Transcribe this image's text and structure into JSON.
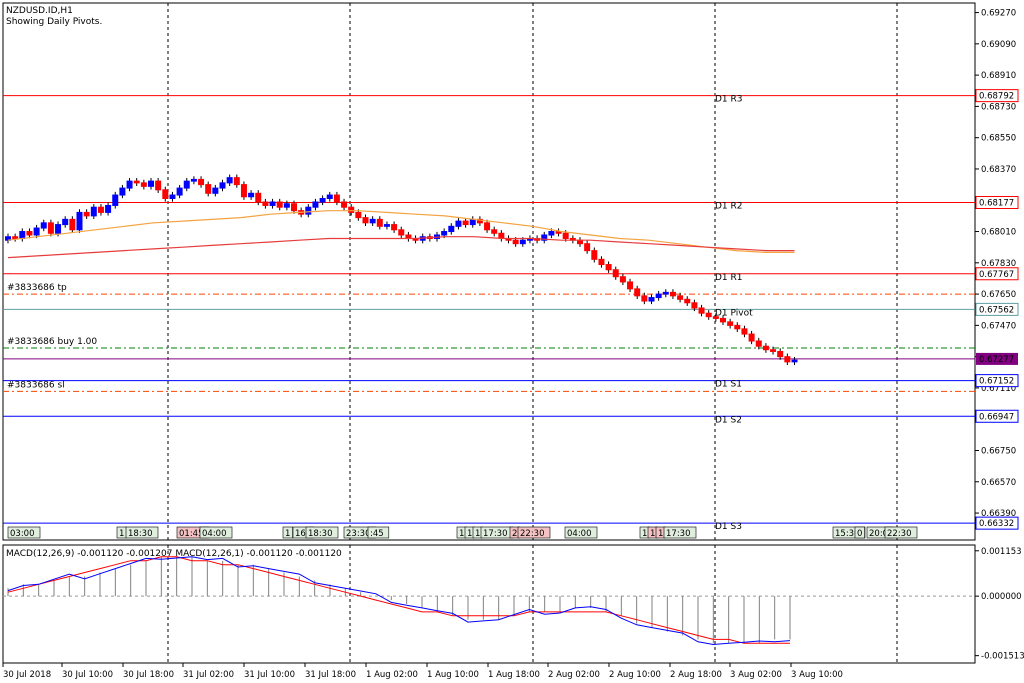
{
  "header": {
    "symbol": "NZDUSD.ID,H1",
    "subtitle": "Showing Daily Pivots."
  },
  "chart_data": {
    "type": "candlestick",
    "price_axis": {
      "range": [
        0.66235,
        0.69325
      ],
      "ticks": [
        "0.69270",
        "0.69090",
        "0.68910",
        "0.68730",
        "0.68550",
        "0.68370",
        "0.68190",
        "0.68010",
        "0.67830",
        "0.67650",
        "0.67470",
        "0.67290",
        "0.67110",
        "0.66930",
        "0.66750",
        "0.66570",
        "0.66390"
      ]
    },
    "time_axis": {
      "labels": [
        "30 Jul 2018",
        "30 Jul 10:00",
        "30 Jul 18:00",
        "31 Jul 02:00",
        "31 Jul 10:00",
        "31 Jul 18:00",
        "1 Aug 02:00",
        "1 Aug 10:00",
        "1 Aug 18:00",
        "2 Aug 02:00",
        "2 Aug 10:00",
        "2 Aug 18:00",
        "3 Aug 02:00",
        "3 Aug 10:00"
      ]
    },
    "pivot_levels": [
      {
        "name": "D1 R3",
        "value": 0.68792,
        "label": "0.68792",
        "color": "#ff0000"
      },
      {
        "name": "D1 R2",
        "value": 0.68177,
        "label": "0.68177",
        "color": "#ff0000"
      },
      {
        "name": "D1 R1",
        "value": 0.67767,
        "label": "0.67767",
        "color": "#ff0000"
      },
      {
        "name": "D1 Pivot",
        "value": 0.67562,
        "label": "0.67562",
        "color": "#5f9ea0"
      },
      {
        "name": "D1 S1",
        "value": 0.67152,
        "label": "0.67152",
        "color": "#0000ff"
      },
      {
        "name": "D1 S2",
        "value": 0.66947,
        "label": "0.66947",
        "color": "#0000ff"
      },
      {
        "name": "D1 S3",
        "value": 0.66332,
        "label": "0.66332",
        "color": "#0000ff"
      }
    ],
    "current_price": {
      "value": 0.67277,
      "label": "0.67277",
      "color": "#800080"
    },
    "orders": [
      {
        "label": "#3833686 tp",
        "value": 0.6765,
        "color": "#ff4500"
      },
      {
        "label": "#3833686 buy 1.00",
        "value": 0.6734,
        "color": "#008000"
      },
      {
        "label": "#3833686 sl",
        "value": 0.6709,
        "color": "#ff4500"
      }
    ],
    "session_labels": [
      "03:00",
      "1",
      "18:30",
      "01:45",
      "04:00",
      "1",
      "16:",
      "18:30",
      "23:30",
      ":45",
      "1",
      "1",
      "1",
      "17:30",
      "2",
      "22:30",
      "04:00",
      "1",
      "1",
      "1",
      "17:30",
      "15:30",
      "0",
      "20:0",
      "22:30"
    ],
    "closes": [
      0.6798,
      0.6797,
      0.6801,
      0.6799,
      0.6803,
      0.6806,
      0.68,
      0.6805,
      0.6808,
      0.6802,
      0.6812,
      0.681,
      0.6815,
      0.6812,
      0.6816,
      0.6822,
      0.6826,
      0.683,
      0.6829,
      0.6827,
      0.683,
      0.6825,
      0.682,
      0.6822,
      0.6826,
      0.683,
      0.6831,
      0.6828,
      0.6823,
      0.6826,
      0.6829,
      0.6832,
      0.6828,
      0.6821,
      0.6823,
      0.6818,
      0.6816,
      0.6818,
      0.6815,
      0.6817,
      0.6813,
      0.6811,
      0.6815,
      0.6818,
      0.682,
      0.6822,
      0.6818,
      0.6815,
      0.6812,
      0.6809,
      0.6806,
      0.6808,
      0.6804,
      0.6805,
      0.6802,
      0.6799,
      0.6797,
      0.6796,
      0.6798,
      0.6797,
      0.6799,
      0.6801,
      0.6804,
      0.6807,
      0.6805,
      0.6808,
      0.6806,
      0.6802,
      0.68,
      0.6797,
      0.6796,
      0.6794,
      0.6796,
      0.6797,
      0.6796,
      0.6799,
      0.6801,
      0.68,
      0.6797,
      0.6796,
      0.6794,
      0.679,
      0.6785,
      0.6782,
      0.6779,
      0.6775,
      0.6772,
      0.6768,
      0.6764,
      0.6761,
      0.6763,
      0.6765,
      0.6766,
      0.6764,
      0.6762,
      0.676,
      0.6757,
      0.6754,
      0.6752,
      0.6751,
      0.6749,
      0.6747,
      0.6745,
      0.6742,
      0.6738,
      0.6735,
      0.6733,
      0.6732,
      0.6729,
      0.6726,
      0.6727
    ],
    "ma_fast": [
      0.6796,
      0.6798,
      0.68,
      0.6802,
      0.6804,
      0.6806,
      0.6807,
      0.6808,
      0.6809,
      0.6811,
      0.6812,
      0.6813,
      0.6813,
      0.6812,
      0.6811,
      0.681,
      0.6808,
      0.6806,
      0.6804,
      0.6801,
      0.6799,
      0.6797,
      0.6796,
      0.6794,
      0.6792,
      0.679,
      0.6789,
      0.6789
    ],
    "ma_slow": [
      0.6786,
      0.6787,
      0.6788,
      0.6789,
      0.679,
      0.6791,
      0.6792,
      0.6793,
      0.6794,
      0.6795,
      0.6796,
      0.6797,
      0.6797,
      0.6797,
      0.6797,
      0.6798,
      0.6798,
      0.6797,
      0.6797,
      0.6796,
      0.6796,
      0.6795,
      0.6794,
      0.6793,
      0.6792,
      0.6791,
      0.679,
      0.679
    ],
    "macd": {
      "label": "MACD(12,26,9) -0.001120 -0.001207 MACD(12,26,1) -0.001120 -0.001120",
      "range": [
        -0.0017,
        0.0013
      ],
      "ticks": [
        "0.001153",
        "0.000000",
        "-0.001513"
      ],
      "histogram": [
        0.0002,
        0.0003,
        0.0003,
        0.0004,
        0.0005,
        0.0005,
        0.0006,
        0.0007,
        0.0008,
        0.0009,
        0.001,
        0.001,
        0.001,
        0.0009,
        0.0009,
        0.0008,
        0.0008,
        0.0007,
        0.0006,
        0.0005,
        0.0004,
        0.0003,
        0.0002,
        0.0001,
        0.0,
        -0.0001,
        -0.0002,
        -0.0003,
        -0.0004,
        -0.0005,
        -0.0006,
        -0.0006,
        -0.0006,
        -0.0005,
        -0.0004,
        -0.0004,
        -0.0004,
        -0.0003,
        -0.0003,
        -0.0004,
        -0.0005,
        -0.0007,
        -0.0008,
        -0.0009,
        -0.001,
        -0.0011,
        -0.0012,
        -0.0012,
        -0.0012,
        -0.0012,
        -0.0011,
        -0.0011
      ],
      "signal": [
        0.0001,
        0.0002,
        0.0003,
        0.0004,
        0.0005,
        0.0006,
        0.0007,
        0.0008,
        0.0009,
        0.0009,
        0.001,
        0.001,
        0.0009,
        0.0009,
        0.0008,
        0.0008,
        0.0007,
        0.0006,
        0.0005,
        0.0004,
        0.0003,
        0.0002,
        0.0001,
        0.0,
        -0.0001,
        -0.0002,
        -0.0003,
        -0.0004,
        -0.0004,
        -0.0005,
        -0.0005,
        -0.0005,
        -0.0005,
        -0.0005,
        -0.0004,
        -0.0004,
        -0.0004,
        -0.0004,
        -0.0004,
        -0.0004,
        -0.0005,
        -0.0006,
        -0.0007,
        -0.0008,
        -0.0009,
        -0.001,
        -0.0011,
        -0.0011,
        -0.0012,
        -0.0012,
        -0.0012,
        -0.0012
      ]
    }
  }
}
